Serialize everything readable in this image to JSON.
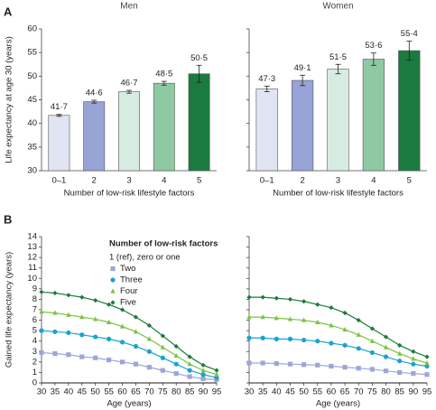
{
  "panel_a_label": "A",
  "panel_b_label": "B",
  "chart_data": [
    {
      "type": "bar",
      "title": "Men",
      "x_label": "Number of low-risk lifestyle factors",
      "y_label": "Life expectancy at age 30 (years)",
      "categories": [
        "0–1",
        "2",
        "3",
        "4",
        "5"
      ],
      "values": [
        41.7,
        44.6,
        46.7,
        48.5,
        50.5
      ],
      "value_labels": [
        "41·7",
        "44·6",
        "46·7",
        "48·5",
        "50·5"
      ],
      "errors": [
        0.2,
        0.3,
        0.3,
        0.4,
        1.8
      ],
      "colors": [
        "#e1e4f3",
        "#98a3d6",
        "#d7ece1",
        "#8fc9a4",
        "#1b7a3d"
      ],
      "ylim": [
        30,
        60
      ],
      "yticks": [
        30,
        35,
        40,
        45,
        50,
        55,
        60
      ],
      "ytick_labels": true
    },
    {
      "type": "bar",
      "title": "Women",
      "x_label": "Number of low-risk lifestyle factors",
      "categories": [
        "0–1",
        "2",
        "3",
        "4",
        "5"
      ],
      "values": [
        47.3,
        49.1,
        51.5,
        53.6,
        55.4
      ],
      "value_labels": [
        "47·3",
        "49·1",
        "51·5",
        "53·6",
        "55·4"
      ],
      "errors": [
        0.6,
        1.1,
        1.0,
        1.3,
        2.0
      ],
      "colors": [
        "#e1e4f3",
        "#98a3d6",
        "#d7ece1",
        "#8fc9a4",
        "#1b7a3d"
      ],
      "ylim": [
        30,
        60
      ],
      "yticks": [
        30,
        35,
        40,
        45,
        50,
        55,
        60
      ],
      "ytick_labels": false
    },
    {
      "type": "line",
      "x_label": "Age (years)",
      "y_label": "Gained life expectancy (years)",
      "legend_title": "Number of low-risk factors",
      "legend": "top-center",
      "x": [
        30,
        35,
        40,
        45,
        50,
        55,
        60,
        65,
        70,
        75,
        80,
        85,
        90,
        95
      ],
      "series": [
        {
          "name": "1 (ref), zero or one",
          "color": "#000000",
          "marker": "none",
          "values": [
            0,
            0,
            0,
            0,
            0,
            0,
            0,
            0,
            0,
            0,
            0,
            0,
            0,
            0
          ]
        },
        {
          "name": "Two",
          "color": "#9da6d8",
          "marker": "square",
          "values": [
            2.9,
            2.8,
            2.7,
            2.5,
            2.4,
            2.2,
            2.0,
            1.8,
            1.5,
            1.2,
            0.9,
            0.6,
            0.4,
            0.3
          ]
        },
        {
          "name": "Three",
          "color": "#1aa3cf",
          "marker": "circle",
          "values": [
            5.0,
            4.9,
            4.8,
            4.6,
            4.4,
            4.2,
            3.9,
            3.5,
            3.0,
            2.4,
            1.8,
            1.2,
            0.8,
            0.5
          ]
        },
        {
          "name": "Four",
          "color": "#7cc242",
          "marker": "triangle",
          "values": [
            6.8,
            6.7,
            6.5,
            6.3,
            6.1,
            5.8,
            5.4,
            4.9,
            4.2,
            3.4,
            2.6,
            1.8,
            1.2,
            0.8
          ]
        },
        {
          "name": "Five",
          "color": "#1b7a3d",
          "marker": "diamond",
          "values": [
            8.7,
            8.6,
            8.4,
            8.2,
            7.9,
            7.5,
            7.0,
            6.3,
            5.5,
            4.5,
            3.5,
            2.5,
            1.7,
            1.2
          ]
        }
      ],
      "xlim": [
        30,
        95
      ],
      "xticks": [
        30,
        35,
        40,
        45,
        50,
        55,
        60,
        65,
        70,
        75,
        80,
        85,
        90,
        95
      ],
      "ylim": [
        0,
        14
      ],
      "yticks": [
        0,
        1,
        2,
        3,
        4,
        5,
        6,
        7,
        8,
        9,
        10,
        11,
        12,
        13,
        14
      ],
      "ytick_labels": true
    },
    {
      "type": "line",
      "x_label": "Age (years)",
      "x": [
        30,
        35,
        40,
        45,
        50,
        55,
        60,
        65,
        70,
        75,
        80,
        85,
        90,
        95
      ],
      "series": [
        {
          "color": "#000000",
          "marker": "none",
          "values": [
            0,
            0,
            0,
            0,
            0,
            0,
            0,
            0,
            0,
            0,
            0,
            0,
            0,
            0
          ]
        },
        {
          "color": "#9da6d8",
          "marker": "square",
          "values": [
            1.9,
            1.9,
            1.85,
            1.8,
            1.75,
            1.7,
            1.6,
            1.5,
            1.4,
            1.3,
            1.15,
            1.0,
            0.9,
            0.8
          ]
        },
        {
          "color": "#1aa3cf",
          "marker": "circle",
          "values": [
            4.3,
            4.3,
            4.2,
            4.2,
            4.1,
            4.0,
            3.8,
            3.6,
            3.3,
            2.9,
            2.5,
            2.1,
            1.8,
            1.6
          ]
        },
        {
          "color": "#7cc242",
          "marker": "triangle",
          "values": [
            6.3,
            6.3,
            6.2,
            6.1,
            6.0,
            5.8,
            5.5,
            5.1,
            4.6,
            4.0,
            3.4,
            2.8,
            2.3,
            1.9
          ]
        },
        {
          "color": "#1b7a3d",
          "marker": "diamond",
          "values": [
            8.2,
            8.2,
            8.1,
            8.0,
            7.8,
            7.5,
            7.2,
            6.7,
            6.0,
            5.2,
            4.4,
            3.6,
            3.0,
            2.5
          ]
        }
      ],
      "xlim": [
        30,
        95
      ],
      "xticks": [
        30,
        35,
        40,
        45,
        50,
        55,
        60,
        65,
        70,
        75,
        80,
        85,
        90,
        95
      ],
      "ylim": [
        0,
        14
      ],
      "yticks": [
        0,
        1,
        2,
        3,
        4,
        5,
        6,
        7,
        8,
        9,
        10,
        11,
        12,
        13,
        14
      ],
      "ytick_labels": false
    }
  ]
}
